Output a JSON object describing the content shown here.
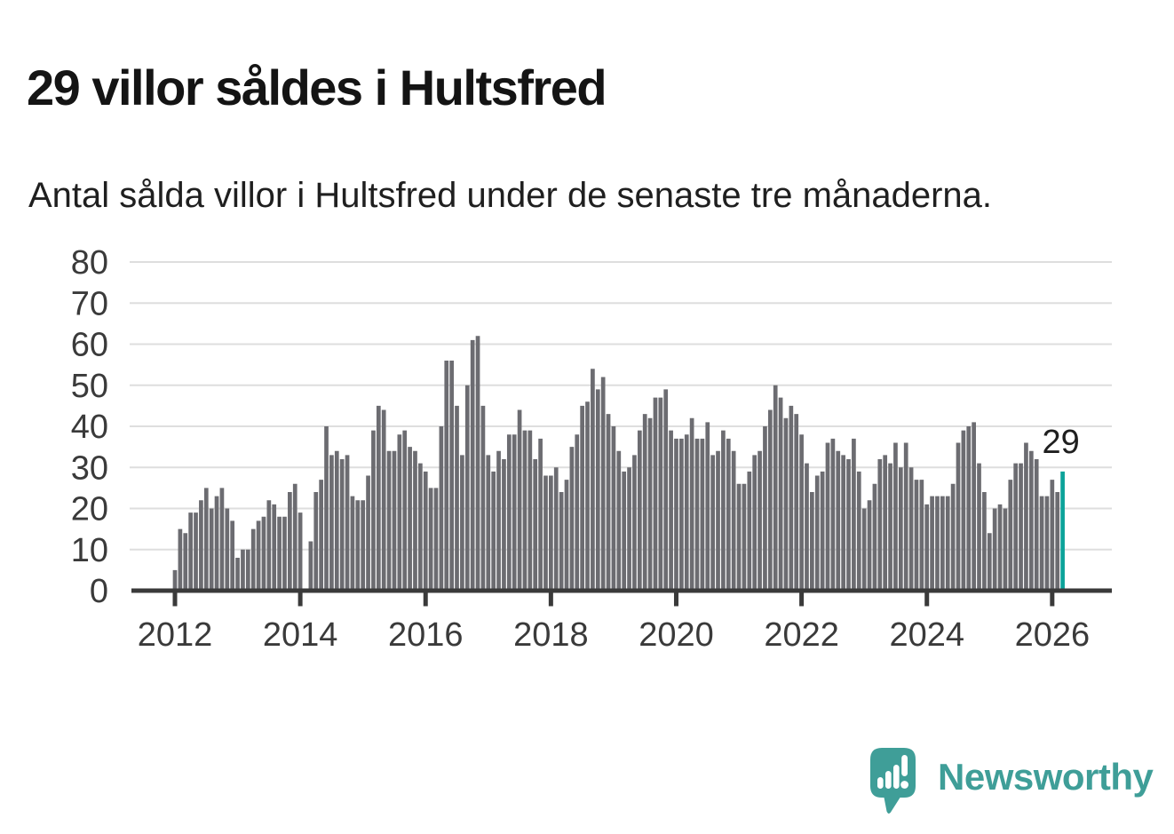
{
  "header": {
    "title": "29 villor såldes i Hultsfred",
    "subtitle": "Antal sålda villor i Hultsfred under de senaste tre månaderna."
  },
  "chart_data": {
    "type": "bar",
    "title": "29 villor såldes i Hultsfred",
    "description": "Antal sålda villor i Hultsfred under de senaste tre månaderna.",
    "x_axis": {
      "frequency": "monthly",
      "start_year": 2012,
      "tick_years": [
        2012,
        2014,
        2016,
        2018,
        2020,
        2022,
        2024,
        2026
      ]
    },
    "y_axis": {
      "ticks": [
        0,
        10,
        20,
        30,
        40,
        50,
        60,
        70,
        80
      ],
      "range": [
        0,
        80
      ],
      "grid": true
    },
    "values": [
      5,
      15,
      14,
      19,
      19,
      22,
      25,
      20,
      23,
      25,
      20,
      17,
      8,
      10,
      10,
      15,
      17,
      18,
      22,
      21,
      18,
      18,
      24,
      26,
      19,
      0,
      12,
      24,
      27,
      40,
      33,
      34,
      32,
      33,
      23,
      22,
      22,
      28,
      39,
      45,
      44,
      34,
      34,
      38,
      39,
      35,
      34,
      31,
      29,
      25,
      25,
      40,
      56,
      56,
      45,
      33,
      50,
      61,
      62,
      45,
      33,
      29,
      34,
      32,
      38,
      38,
      44,
      39,
      39,
      32,
      37,
      28,
      28,
      30,
      24,
      27,
      35,
      38,
      45,
      46,
      54,
      49,
      52,
      43,
      40,
      34,
      29,
      30,
      33,
      39,
      43,
      42,
      47,
      47,
      49,
      39,
      37,
      37,
      38,
      42,
      37,
      37,
      41,
      33,
      34,
      39,
      37,
      34,
      26,
      26,
      29,
      33,
      34,
      40,
      44,
      50,
      47,
      42,
      45,
      43,
      38,
      31,
      24,
      28,
      29,
      36,
      37,
      34,
      33,
      32,
      37,
      29,
      20,
      22,
      26,
      32,
      33,
      31,
      36,
      30,
      36,
      30,
      27,
      27,
      21,
      23,
      23,
      23,
      23,
      26,
      36,
      39,
      40,
      41,
      31,
      24,
      14,
      20,
      21,
      20,
      27,
      31,
      31,
      36,
      34,
      32,
      23,
      23,
      27,
      24,
      29
    ],
    "highlight": {
      "index": 170,
      "label": "29",
      "color": "#0ca39a"
    },
    "colors": {
      "bar": "#6c6c71",
      "grid": "#dedede",
      "axis": "#3a3a3a",
      "text": "#3a3a3a",
      "annotation": "#1f1f1f"
    },
    "legend": "none"
  },
  "branding": {
    "wordmark": "Newsworthy",
    "color": "#3f9e98"
  }
}
